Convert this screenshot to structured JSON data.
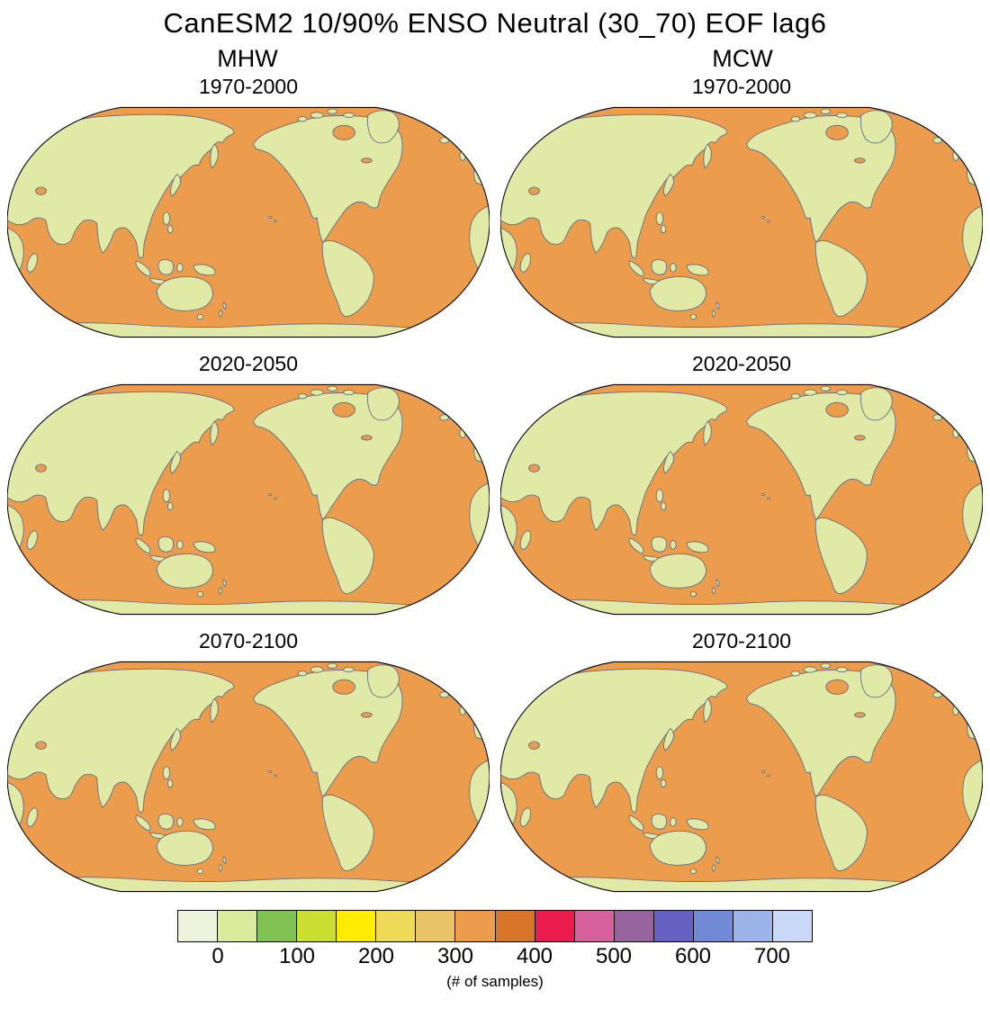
{
  "title": "CanESM2 10/90% ENSO Neutral (30_70) EOF lag6",
  "column_headers": [
    {
      "label": "MHW"
    },
    {
      "label": "MCW"
    }
  ],
  "panels": [
    {
      "column": "MHW",
      "title": "1970-2000"
    },
    {
      "column": "MCW",
      "title": "1970-2000"
    },
    {
      "column": "MHW",
      "title": "2020-2050"
    },
    {
      "column": "MCW",
      "title": "2020-2050"
    },
    {
      "column": "MHW",
      "title": "2070-2100"
    },
    {
      "column": "MCW",
      "title": "2070-2100"
    }
  ],
  "colorbar": {
    "caption": "(# of samples)",
    "ticks": [
      "0",
      "100",
      "200",
      "300",
      "400",
      "500",
      "600",
      "700"
    ],
    "colors": [
      "#edf3da",
      "#dcea9e",
      "#82c153",
      "#cbdf33",
      "#ffec00",
      "#eeda58",
      "#e9c368",
      "#eb9c4d",
      "#d9742b",
      "#ea1c4e",
      "#d6619c",
      "#96639f",
      "#6660c2",
      "#7289d6",
      "#9db4ea",
      "#c9d8f6"
    ]
  },
  "map_colors": {
    "ocean": "#eb9c4d",
    "land": "#e0eaa6",
    "coast": "#5f6b82",
    "outline": "#000000"
  },
  "chart_data": {
    "type": "heatmap",
    "title": "CanESM2 10/90% ENSO Neutral (30_70) EOF lag6",
    "layout": {
      "grid": "3 rows x 2 columns of Robinson-projection world maps, Pacific-centered",
      "columns": [
        "MHW",
        "MCW"
      ],
      "rows": [
        "1970-2000",
        "2020-2050",
        "2070-2100"
      ],
      "legend_position": "bottom"
    },
    "panels": [
      {
        "column": "MHW",
        "period": "1970-2000",
        "ocean_samples_bin": [
          300,
          350
        ],
        "land": "masked"
      },
      {
        "column": "MCW",
        "period": "1970-2000",
        "ocean_samples_bin": [
          300,
          350
        ],
        "land": "masked"
      },
      {
        "column": "MHW",
        "period": "2020-2050",
        "ocean_samples_bin": [
          300,
          350
        ],
        "land": "masked"
      },
      {
        "column": "MCW",
        "period": "2020-2050",
        "ocean_samples_bin": [
          300,
          350
        ],
        "land": "masked"
      },
      {
        "column": "MHW",
        "period": "2070-2100",
        "ocean_samples_bin": [
          300,
          350
        ],
        "land": "masked"
      },
      {
        "column": "MCW",
        "period": "2070-2100",
        "ocean_samples_bin": [
          300,
          350
        ],
        "land": "masked"
      }
    ],
    "colorbar": {
      "label": "(# of samples)",
      "bin_width": 50,
      "domain": [
        -50,
        750
      ],
      "tick_values": [
        0,
        100,
        200,
        300,
        400,
        500,
        600,
        700
      ],
      "bin_colors": [
        "#edf3da",
        "#dcea9e",
        "#82c153",
        "#cbdf33",
        "#ffec00",
        "#eeda58",
        "#e9c368",
        "#eb9c4d",
        "#d9742b",
        "#ea1c4e",
        "#d6619c",
        "#96639f",
        "#6660c2",
        "#7289d6",
        "#9db4ea",
        "#c9d8f6"
      ]
    }
  }
}
